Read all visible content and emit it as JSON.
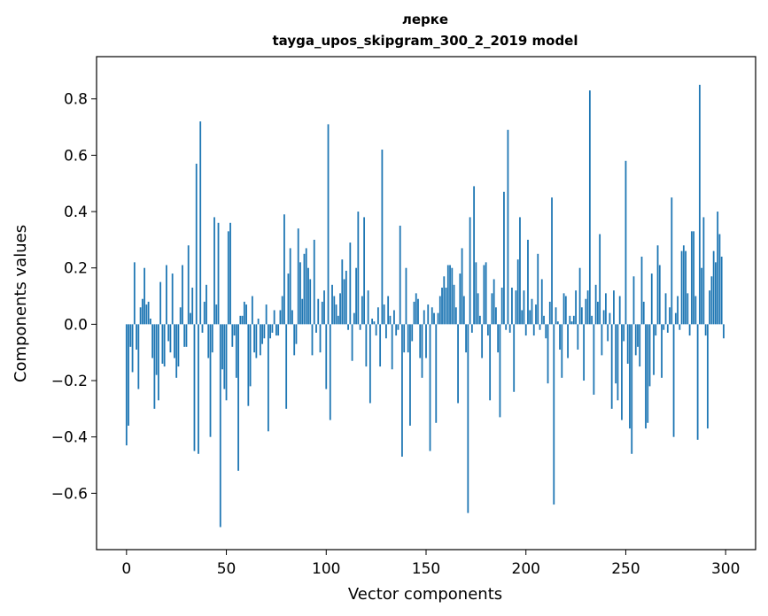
{
  "chart_data": {
    "type": "bar",
    "title_lines": [
      "лерке",
      "tayga_upos_skipgram_300_2_2019 model"
    ],
    "xlabel": "Vector components",
    "ylabel": "Components values",
    "xlim": [
      -15,
      315
    ],
    "ylim": [
      -0.8,
      0.95
    ],
    "xticks": [
      0,
      50,
      100,
      150,
      200,
      250,
      300
    ],
    "xtick_labels": [
      "0",
      "50",
      "100",
      "150",
      "200",
      "250",
      "300"
    ],
    "yticks": [
      -0.6,
      -0.4,
      -0.2,
      0.0,
      0.2,
      0.4,
      0.6,
      0.8
    ],
    "ytick_labels": [
      "−0.6",
      "−0.4",
      "−0.2",
      "0.0",
      "0.2",
      "0.4",
      "0.6",
      "0.8"
    ],
    "grid": false,
    "bar_color": "#1f77b4",
    "x": "0..299",
    "values": [
      -0.43,
      -0.36,
      -0.08,
      -0.17,
      0.22,
      -0.09,
      -0.23,
      0.06,
      0.09,
      0.2,
      0.07,
      0.08,
      0.02,
      -0.12,
      -0.3,
      -0.18,
      -0.27,
      0.15,
      -0.14,
      -0.15,
      0.21,
      -0.06,
      -0.1,
      0.18,
      -0.12,
      -0.19,
      -0.15,
      0.06,
      0.21,
      -0.08,
      -0.08,
      0.28,
      0.04,
      0.13,
      -0.45,
      0.57,
      -0.46,
      0.72,
      -0.03,
      0.08,
      0.14,
      -0.12,
      -0.4,
      -0.1,
      0.38,
      0.07,
      0.36,
      -0.72,
      -0.16,
      -0.23,
      -0.27,
      0.33,
      0.36,
      -0.08,
      -0.04,
      -0.19,
      -0.52,
      0.03,
      0.03,
      0.08,
      0.07,
      -0.29,
      -0.22,
      0.1,
      -0.1,
      -0.12,
      0.02,
      -0.11,
      -0.07,
      -0.05,
      0.07,
      -0.38,
      -0.05,
      -0.03,
      0.05,
      -0.04,
      -0.04,
      0.05,
      0.1,
      0.39,
      -0.3,
      0.18,
      0.27,
      0.05,
      -0.11,
      -0.07,
      0.34,
      0.22,
      0.09,
      0.25,
      0.27,
      0.2,
      0.16,
      -0.11,
      0.3,
      -0.03,
      0.09,
      -0.1,
      0.08,
      0.12,
      -0.23,
      0.71,
      -0.34,
      0.14,
      0.1,
      0.07,
      0.03,
      0.11,
      0.23,
      0.16,
      0.19,
      -0.02,
      0.29,
      -0.13,
      0.04,
      0.2,
      0.4,
      -0.02,
      0.1,
      0.38,
      -0.15,
      0.12,
      -0.28,
      0.02,
      0.01,
      -0.04,
      0.06,
      -0.15,
      0.62,
      0.07,
      -0.05,
      0.1,
      0.03,
      -0.16,
      0.05,
      -0.04,
      -0.02,
      0.35,
      -0.47,
      -0.1,
      0.2,
      -0.1,
      -0.36,
      -0.06,
      0.08,
      0.11,
      0.09,
      -0.12,
      -0.19,
      0.05,
      -0.12,
      0.07,
      -0.45,
      0.06,
      0.04,
      -0.35,
      0.04,
      0.1,
      0.13,
      0.17,
      0.13,
      0.21,
      0.21,
      0.2,
      0.14,
      0.06,
      -0.28,
      0.18,
      0.27,
      0.1,
      -0.1,
      -0.67,
      0.38,
      -0.03,
      0.49,
      0.22,
      0.11,
      0.03,
      -0.12,
      0.21,
      0.22,
      -0.04,
      -0.27,
      0.11,
      0.16,
      0.06,
      -0.1,
      -0.33,
      0.13,
      0.47,
      -0.02,
      0.69,
      -0.03,
      0.13,
      -0.24,
      0.12,
      0.23,
      0.38,
      0.05,
      0.12,
      -0.04,
      0.3,
      0.05,
      0.09,
      -0.04,
      0.07,
      0.25,
      -0.02,
      0.16,
      0.03,
      -0.05,
      -0.21,
      0.08,
      0.45,
      -0.64,
      0.06,
      0.01,
      -0.09,
      -0.19,
      0.11,
      0.1,
      -0.12,
      0.03,
      0.01,
      0.03,
      0.12,
      -0.09,
      0.2,
      0.06,
      -0.2,
      0.09,
      0.12,
      0.83,
      0.03,
      -0.25,
      0.14,
      0.08,
      0.32,
      -0.11,
      0.05,
      0.11,
      -0.06,
      0.04,
      -0.3,
      0.12,
      -0.21,
      -0.27,
      0.1,
      -0.34,
      -0.06,
      0.58,
      -0.14,
      -0.37,
      -0.46,
      0.17,
      -0.11,
      -0.08,
      -0.15,
      0.24,
      0.08,
      -0.37,
      -0.35,
      -0.22,
      0.18,
      -0.18,
      -0.04,
      0.28,
      0.21,
      -0.19,
      -0.02,
      0.11,
      -0.03,
      0.06,
      0.45,
      -0.4,
      0.04,
      0.1,
      -0.02,
      0.26,
      0.28,
      0.26,
      0.11,
      -0.04,
      0.33,
      0.33,
      0.1,
      -0.41,
      0.85,
      0.2,
      0.38,
      -0.04,
      -0.37,
      0.12,
      0.17,
      0.26,
      0.22,
      0.4,
      0.32,
      0.24,
      -0.05
    ]
  }
}
